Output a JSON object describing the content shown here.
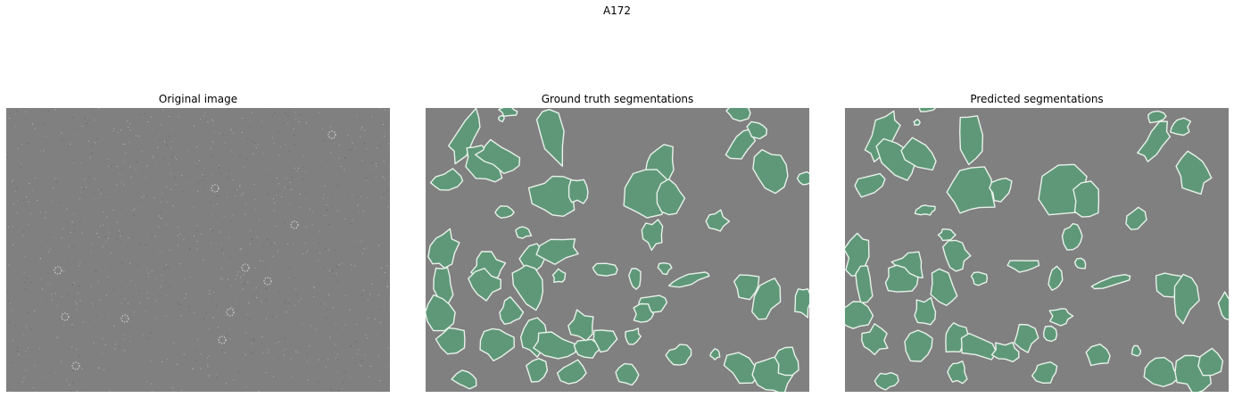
{
  "figure": {
    "title": "A172"
  },
  "panels": [
    {
      "title": "Original image"
    },
    {
      "title": "Ground truth segmentations"
    },
    {
      "title": "Predicted segmentations"
    }
  ],
  "colors": {
    "background": "#808080",
    "mask_fill": "#5f9878",
    "mask_outline": "#e8f2ea",
    "cell_speckle": "#c9c9c9"
  }
}
